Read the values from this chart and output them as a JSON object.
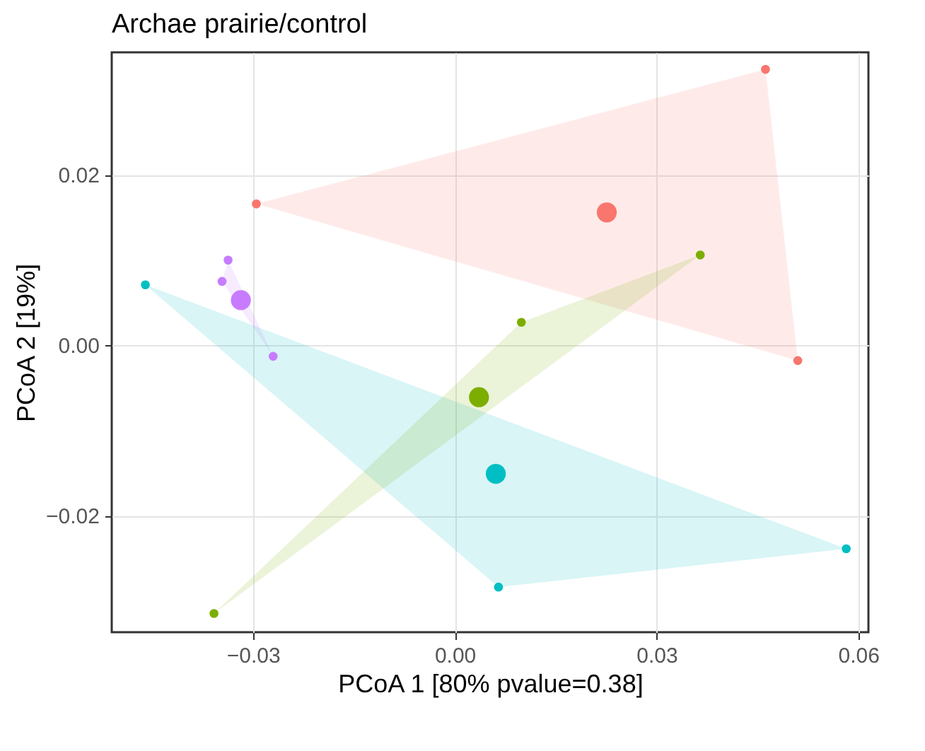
{
  "chart_data": {
    "type": "bubble",
    "title": "Archae prairie/control",
    "xlabel": "PCoA 1 [80%  pvalue=0.38]",
    "ylabel": "PCoA 2 [19%]",
    "xlim": [
      -0.051,
      0.0615
    ],
    "ylim": [
      -0.0337,
      0.0344
    ],
    "xticks": [
      -0.03,
      {
        "value": 0,
        "label": "0.00"
      },
      0.03,
      0.06
    ],
    "yticks": [
      -0.02,
      {
        "value": 0,
        "label": "0.00"
      },
      0.02
    ],
    "grid": true,
    "marker": "circle",
    "series": [
      {
        "color": "#f8766d",
        "x": [
          -0.0295,
          0.0462,
          0.051,
          0.0226
        ],
        "values": [
          0.0166,
          0.0324,
          -0.0018,
          0.0156
        ],
        "sizes": [
          0.2,
          0.2,
          0.2,
          1
        ]
      },
      {
        "color": "#c77cff",
        "x": [
          -0.0337,
          -0.0346,
          -0.027,
          -0.0318
        ],
        "values": [
          0.01,
          0.0075,
          -0.0013,
          0.0053
        ],
        "sizes": [
          0.2,
          0.2,
          0.2,
          1
        ]
      },
      {
        "color": "#00bfc4",
        "x": [
          -0.046,
          0.0065,
          0.0582,
          0.0061
        ],
        "values": [
          0.0071,
          -0.0284,
          -0.0239,
          -0.0151
        ],
        "sizes": [
          0.2,
          0.2,
          0.2,
          1
        ]
      },
      {
        "color": "#7cae00",
        "x": [
          -0.0358,
          0.0099,
          0.0365,
          0.0036
        ],
        "values": [
          -0.0315,
          0.0027,
          0.0106,
          -0.0061
        ],
        "sizes": [
          0.2,
          0.2,
          0.2,
          1
        ]
      }
    ]
  }
}
